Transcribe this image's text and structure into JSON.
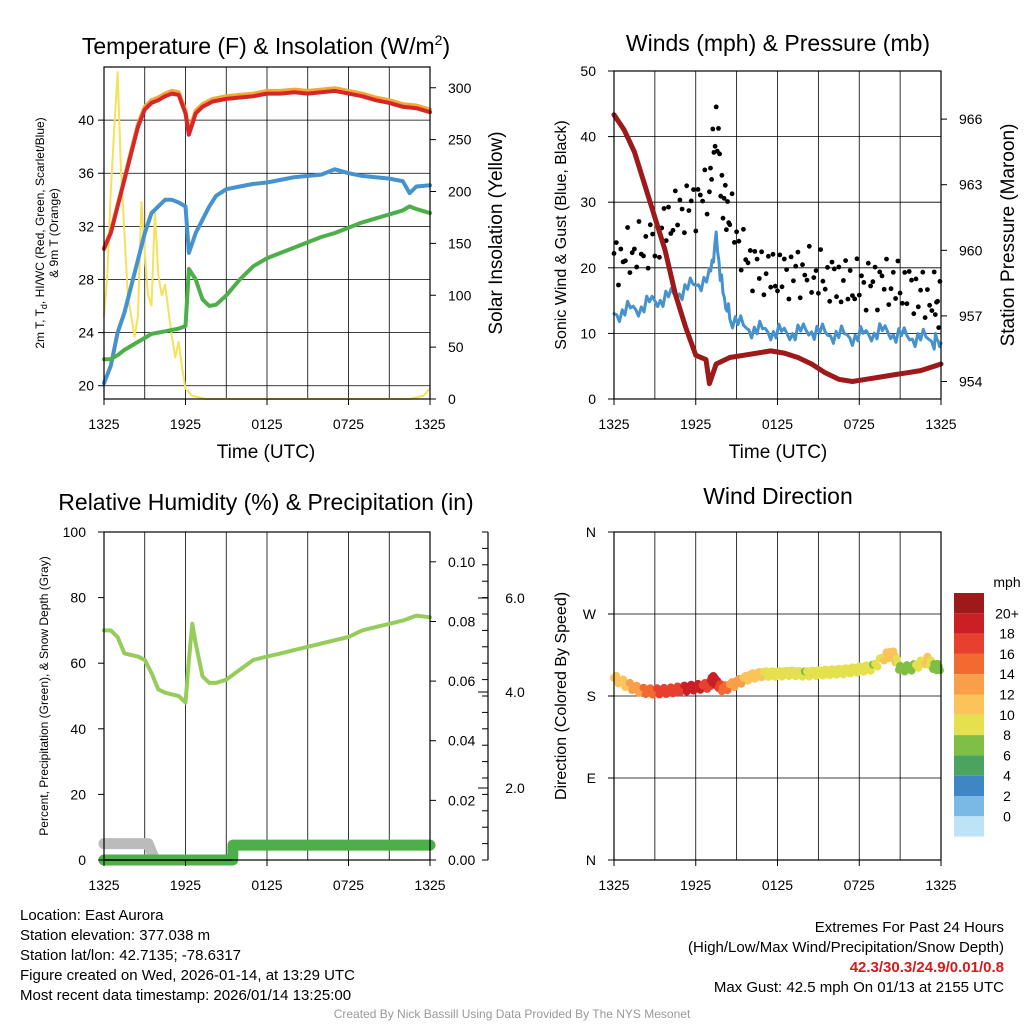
{
  "chart_data": [
    {
      "type": "line",
      "title": "Temperature (F) & Insolation (W/m",
      "title_sup": "2",
      "title_end": ")",
      "xlabel": "Time (UTC)",
      "ylabel_line1": "2m T, T",
      "ylabel_sub": "d",
      "ylabel_rest": ", HI/WC (Red, Green, Scarlet/Blue)",
      "ylabel_line2": "& 9m T (Orange)",
      "y2label": "Solar Insolation (Yellow)",
      "x_ticks": [
        "1325",
        "1925",
        "0125",
        "0725",
        "1325"
      ],
      "ylim": [
        19,
        44
      ],
      "y_ticks": [
        "20",
        "24",
        "28",
        "32",
        "36",
        "40"
      ],
      "y2lim": [
        0,
        320
      ],
      "y2_ticks": [
        "0",
        "50",
        "100",
        "150",
        "200",
        "250",
        "300"
      ],
      "series": [
        {
          "name": "2m T",
          "color": "#d62728",
          "axis": "left",
          "x": [
            0,
            2,
            4,
            6,
            8,
            10,
            12,
            14,
            16,
            18,
            20,
            22,
            24,
            25,
            27,
            29,
            32,
            36,
            40,
            44,
            48,
            52,
            56,
            60,
            64,
            68,
            72,
            76,
            80,
            84,
            88,
            92,
            96
          ],
          "values": [
            30.3,
            31.5,
            33.5,
            35.5,
            37.5,
            39.5,
            40.8,
            41.3,
            41.5,
            41.8,
            42.0,
            41.9,
            40.5,
            38.9,
            40.5,
            41.0,
            41.4,
            41.6,
            41.7,
            41.8,
            42.0,
            42.0,
            42.1,
            42.0,
            42.1,
            42.2,
            42.0,
            41.8,
            41.5,
            41.3,
            41.0,
            40.9,
            40.6
          ]
        },
        {
          "name": "9m T",
          "color": "#f4a736",
          "axis": "left",
          "x": [
            0,
            2,
            4,
            6,
            8,
            10,
            12,
            14,
            16,
            18,
            20,
            22,
            24,
            25,
            27,
            29,
            32,
            36,
            40,
            44,
            48,
            52,
            56,
            60,
            64,
            68,
            72,
            76,
            80,
            84,
            88,
            92,
            96
          ],
          "values": [
            30.4,
            31.6,
            33.6,
            35.6,
            37.7,
            39.7,
            41.0,
            41.5,
            41.7,
            42.0,
            42.2,
            42.1,
            40.7,
            39.1,
            40.7,
            41.2,
            41.6,
            41.8,
            41.9,
            42.0,
            42.2,
            42.2,
            42.3,
            42.2,
            42.3,
            42.4,
            42.2,
            42.0,
            41.7,
            41.5,
            41.2,
            41.1,
            40.8
          ]
        },
        {
          "name": "Td",
          "color": "#4daf4a",
          "axis": "left",
          "x": [
            0,
            2,
            4,
            6,
            8,
            10,
            12,
            14,
            16,
            18,
            20,
            22,
            24,
            25,
            27,
            29,
            31,
            33,
            36,
            40,
            44,
            48,
            52,
            56,
            60,
            64,
            68,
            72,
            76,
            80,
            84,
            88,
            90,
            92,
            96
          ],
          "values": [
            22.0,
            22.0,
            22.3,
            22.7,
            23.0,
            23.3,
            23.6,
            23.9,
            24.0,
            24.1,
            24.2,
            24.3,
            24.5,
            28.8,
            28.0,
            26.5,
            26.0,
            26.1,
            26.8,
            28.0,
            29.0,
            29.6,
            30.0,
            30.4,
            30.8,
            31.2,
            31.5,
            31.9,
            32.3,
            32.6,
            32.9,
            33.2,
            33.5,
            33.3,
            33.0
          ]
        },
        {
          "name": "HI/WC",
          "color": "#4592ce",
          "axis": "left",
          "x": [
            0,
            2,
            4,
            6,
            8,
            10,
            12,
            14,
            16,
            18,
            20,
            22,
            24,
            25,
            27,
            29,
            31,
            33,
            36,
            40,
            44,
            48,
            52,
            56,
            60,
            64,
            68,
            72,
            76,
            80,
            84,
            88,
            90,
            92,
            96
          ],
          "values": [
            20.2,
            21.5,
            24.0,
            25.5,
            27.5,
            29.5,
            31.5,
            33.0,
            33.5,
            34.0,
            34.0,
            33.8,
            33.5,
            30.0,
            31.5,
            32.5,
            33.5,
            34.3,
            34.8,
            35.0,
            35.2,
            35.3,
            35.5,
            35.7,
            35.8,
            35.9,
            36.3,
            36.0,
            35.8,
            35.7,
            35.6,
            35.4,
            34.5,
            35.0,
            35.1
          ]
        },
        {
          "name": "Solar Insolation",
          "color": "#f5e15a",
          "axis": "right",
          "x": [
            0,
            1,
            2,
            3,
            4,
            5,
            6,
            7,
            8,
            9,
            10,
            11,
            12,
            13,
            14,
            15,
            16,
            17,
            18,
            19,
            20,
            21,
            22,
            23,
            24,
            26,
            30,
            40,
            50,
            60,
            70,
            80,
            90,
            94,
            96
          ],
          "values": [
            80,
            120,
            200,
            260,
            315,
            220,
            160,
            100,
            80,
            60,
            80,
            190,
            140,
            100,
            90,
            180,
            120,
            100,
            110,
            85,
            60,
            40,
            55,
            30,
            10,
            3,
            0,
            0,
            0,
            0,
            0,
            0,
            0,
            3,
            10
          ]
        }
      ]
    },
    {
      "type": "line",
      "title": "Winds (mph) & Pressure (mb)",
      "xlabel": "Time (UTC)",
      "ylabel": "Sonic Wind & Gust (Blue, Black)",
      "y2label": "Station Pressure (Maroon)",
      "x_ticks": [
        "1325",
        "1925",
        "0125",
        "0725",
        "1325"
      ],
      "ylim": [
        0,
        50
      ],
      "y_ticks": [
        "0",
        "10",
        "20",
        "30",
        "40",
        "50"
      ],
      "y2lim": [
        953.2,
        968.2
      ],
      "y2_ticks": [
        "954",
        "957",
        "960",
        "963",
        "966"
      ],
      "series": [
        {
          "name": "Sonic Wind",
          "color": "#4592ce",
          "axis": "left",
          "x": [
            0,
            4,
            8,
            12,
            16,
            20,
            24,
            28,
            30,
            32,
            34,
            38,
            42,
            46,
            50,
            54,
            58,
            62,
            66,
            70,
            74,
            78,
            82,
            86,
            90,
            94,
            96
          ],
          "values": [
            13,
            13.5,
            14,
            15,
            15.5,
            16.5,
            17.5,
            18.5,
            24.5,
            16,
            12.5,
            11,
            10.5,
            10.3,
            10.0,
            10.2,
            10.5,
            10.0,
            9.8,
            9.5,
            9.8,
            10.3,
            10.0,
            9.5,
            9.3,
            9.0,
            8.5
          ]
        },
        {
          "name": "Gust",
          "color": "#000000",
          "axis": "left",
          "x": [
            0,
            4,
            8,
            12,
            16,
            20,
            24,
            28,
            30,
            32,
            34,
            38,
            42,
            46,
            50,
            54,
            58,
            62,
            66,
            70,
            74,
            78,
            82,
            86,
            90,
            94,
            96
          ],
          "values": [
            21,
            22,
            23,
            24,
            27,
            29,
            30,
            32,
            42.5,
            30,
            28,
            22,
            20,
            19,
            19,
            19.5,
            19,
            18.5,
            18,
            17.5,
            17.5,
            18,
            17.5,
            17,
            16,
            15,
            14
          ]
        },
        {
          "name": "Station Pressure",
          "color": "#9e1a1a",
          "axis": "right",
          "x": [
            0,
            3,
            6,
            9,
            12,
            15,
            18,
            21,
            24,
            27,
            28,
            30,
            34,
            38,
            42,
            46,
            50,
            54,
            58,
            62,
            66,
            70,
            74,
            78,
            82,
            86,
            90,
            94,
            96
          ],
          "values": [
            966.2,
            965.5,
            964.5,
            963.0,
            961.5,
            960.0,
            958.0,
            956.5,
            955.2,
            955.0,
            953.9,
            954.8,
            955.1,
            955.2,
            955.3,
            955.4,
            955.3,
            955.1,
            954.8,
            954.4,
            954.1,
            954.0,
            954.1,
            954.2,
            954.3,
            954.4,
            954.5,
            954.7,
            954.8
          ]
        }
      ]
    },
    {
      "type": "line",
      "title": "Relative Humidity (%) & Precipitation (in)",
      "ylabel": "Percent, Precipitation (Green), & Snow Depth (Gray)",
      "x_ticks": [
        "1325",
        "1925",
        "0125",
        "0725",
        "1325"
      ],
      "ylim": [
        0,
        100
      ],
      "y_ticks": [
        "0",
        "20",
        "40",
        "60",
        "80",
        "100"
      ],
      "y2lim": [
        0,
        0.11
      ],
      "y2_ticks": [
        "0.00",
        "0.02",
        "0.04",
        "0.06",
        "0.08",
        "0.10"
      ],
      "y3_ticks": [
        "2.0",
        "4.0",
        "6.0"
      ],
      "series": [
        {
          "name": "Relative Humidity",
          "color": "#96cc5a",
          "axis": "left",
          "x": [
            0,
            2,
            4,
            6,
            8,
            10,
            12,
            14,
            16,
            18,
            20,
            22,
            24,
            25,
            26,
            27,
            29,
            31,
            33,
            36,
            40,
            44,
            48,
            52,
            56,
            60,
            64,
            68,
            72,
            76,
            80,
            84,
            88,
            92,
            96
          ],
          "values": [
            70,
            70,
            68,
            63,
            62.5,
            62,
            61,
            57,
            52,
            51,
            50.5,
            50,
            48,
            61,
            72,
            66,
            56,
            54,
            54,
            55,
            58,
            61,
            62,
            63,
            64,
            65,
            66,
            67,
            68,
            70,
            71,
            72,
            73,
            74.5,
            74
          ]
        },
        {
          "name": "Precipitation",
          "color": "#4daf4a",
          "axis": "right",
          "x": [
            0,
            37.9,
            38,
            96
          ],
          "values": [
            0,
            0,
            0.005,
            0.005
          ]
        },
        {
          "name": "Snow Depth",
          "color": "#bbbbbb",
          "axis": "left",
          "x": [
            0,
            13,
            15
          ],
          "values": [
            5,
            5,
            0
          ]
        }
      ]
    },
    {
      "type": "scatter",
      "title": "Wind Direction",
      "ylabel": "Direction (Colored By Speed)",
      "x_ticks": [
        "1325",
        "1925",
        "0125",
        "0725",
        "1325"
      ],
      "ylim": [
        0,
        360
      ],
      "y_ticks": [
        "N",
        "E",
        "S",
        "W",
        "N"
      ],
      "legend_title": "mph",
      "legend_labels": [
        "20+",
        "18",
        "16",
        "14",
        "12",
        "10",
        "8",
        "6",
        "4",
        "2",
        "0"
      ],
      "legend_colors": [
        "#9e1a1a",
        "#c91f25",
        "#e8402f",
        "#f26a30",
        "#fa9f49",
        "#fbc35a",
        "#e5e04d",
        "#7fbf45",
        "#4aa35e",
        "#3e86c4",
        "#7ab8e5",
        "#bde3f6"
      ],
      "series": [
        {
          "name": "Direction",
          "x": [
            0,
            4,
            8,
            12,
            16,
            20,
            24,
            28,
            29,
            30,
            32,
            36,
            40,
            44,
            48,
            52,
            56,
            60,
            64,
            68,
            72,
            76,
            80,
            82,
            84,
            88,
            92,
            94,
            96
          ],
          "values": [
            200,
            192,
            186,
            185,
            186,
            188,
            190,
            192,
            200,
            195,
            188,
            195,
            202,
            205,
            205,
            206,
            205,
            206,
            207,
            208,
            210,
            212,
            225,
            226,
            210,
            212,
            220,
            212,
            212
          ],
          "speeds": [
            12,
            13,
            15,
            17,
            18,
            19,
            20,
            18,
            21,
            20,
            16,
            14,
            12,
            11,
            10,
            10,
            9,
            10,
            11,
            10,
            10,
            9,
            12,
            13,
            8,
            9,
            12,
            8,
            8
          ]
        }
      ]
    }
  ],
  "info": {
    "location": "Location: East Aurora",
    "elevation": "Station elevation: 377.038 m",
    "latlon": "Station lat/lon: 42.7135; -78.6317",
    "created": "Figure created on Wed, 2026-01-14, at 13:29 UTC",
    "recent": "Most recent data timestamp: 2026/01/14 13:25:00"
  },
  "extremes": {
    "title": "Extremes For Past 24 Hours",
    "subtitle": "(High/Low/Max Wind/Precipitation/Snow Depth)",
    "values": "42.3/30.3/24.9/0.01/0.8",
    "max_gust": "Max Gust: 42.5 mph On 01/13 at 2155 UTC"
  },
  "credit": "Created By Nick Bassill Using Data Provided By The NYS Mesonet"
}
